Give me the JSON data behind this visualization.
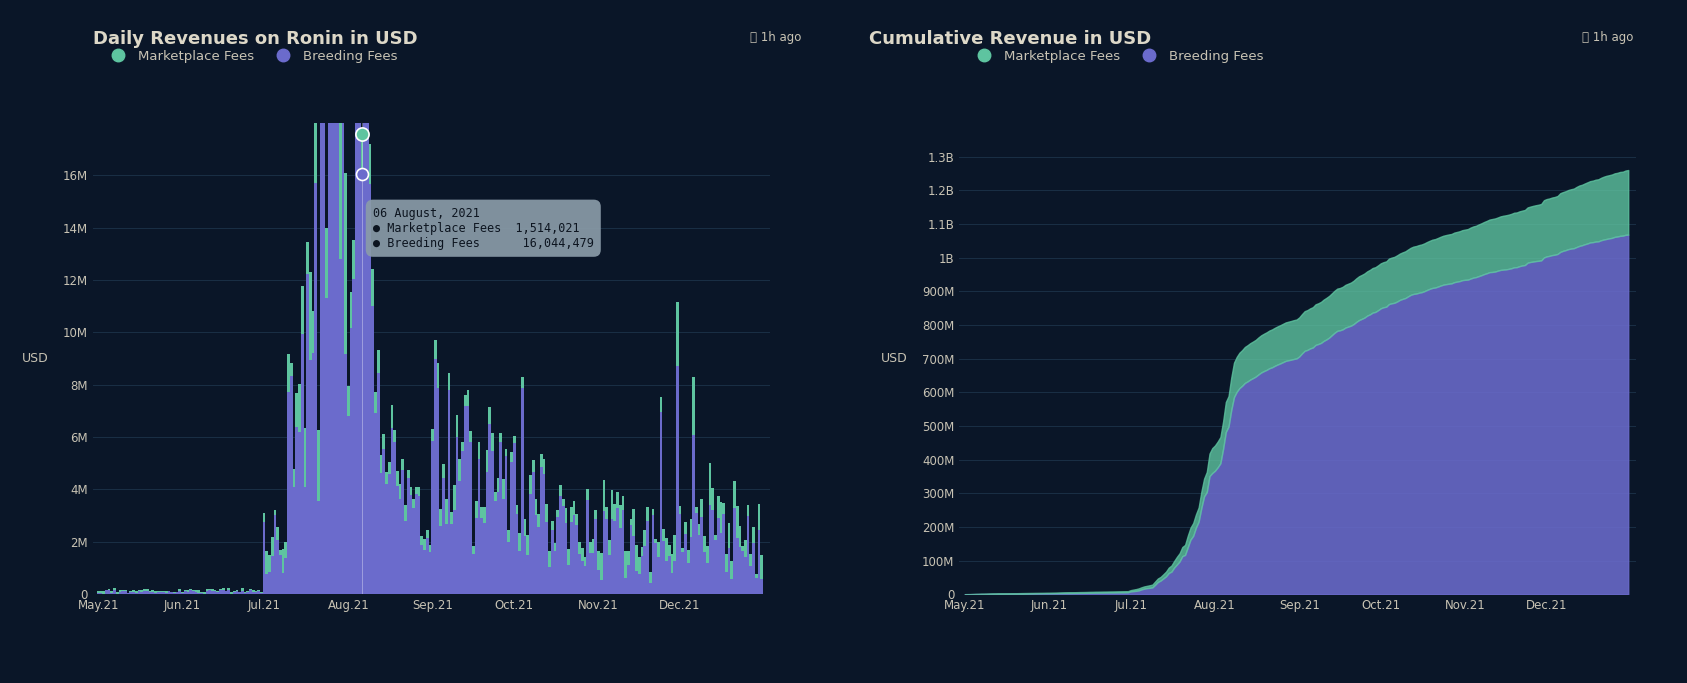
{
  "bg_color": "#0a1628",
  "left_title": "Daily Revenues on Ronin in USD",
  "right_title": "Cumulative Revenue in USD",
  "clock_label": "⌛ 1h ago",
  "legend_marketplace": "Marketplace Fees",
  "legend_breeding": "Breeding Fees",
  "marketplace_color": "#5ec4a0",
  "breeding_color": "#6b6bcc",
  "ylabel": "USD",
  "grid_color": "#1a2f45",
  "text_color": "#c8c3b4",
  "title_color": "#ddd8c8",
  "tooltip_bg": "#8a9ba8",
  "tooltip_text": "#0d1520",
  "left_ylim": [
    0,
    18000000
  ],
  "left_yticks": [
    0,
    2000000,
    4000000,
    6000000,
    8000000,
    10000000,
    12000000,
    14000000,
    16000000
  ],
  "left_ytick_labels": [
    "0",
    "2M",
    "4M",
    "6M",
    "8M",
    "10M",
    "12M",
    "14M",
    "16M"
  ],
  "right_ylim": [
    0,
    1400000000
  ],
  "right_yticks": [
    0,
    100000000,
    200000000,
    300000000,
    400000000,
    500000000,
    600000000,
    700000000,
    800000000,
    900000000,
    1000000000,
    1100000000,
    1200000000,
    1300000000
  ],
  "right_ytick_labels": [
    "0",
    "100M",
    "200M",
    "300M",
    "400M",
    "500M",
    "600M",
    "700M",
    "800M",
    "900M",
    "1B",
    "1.1B",
    "1.2B",
    "1.3B"
  ],
  "x_labels": [
    "May.21",
    "Jun.21",
    "Jul.21",
    "Aug.21",
    "Sep.21",
    "Oct.21",
    "Nov.21",
    "Dec.21"
  ],
  "month_starts": [
    0,
    31,
    61,
    92,
    123,
    153,
    184,
    214
  ],
  "n_days": 245,
  "aug6_day": 97,
  "aug6_breeding": 16044479,
  "aug6_marketplace": 1514021
}
